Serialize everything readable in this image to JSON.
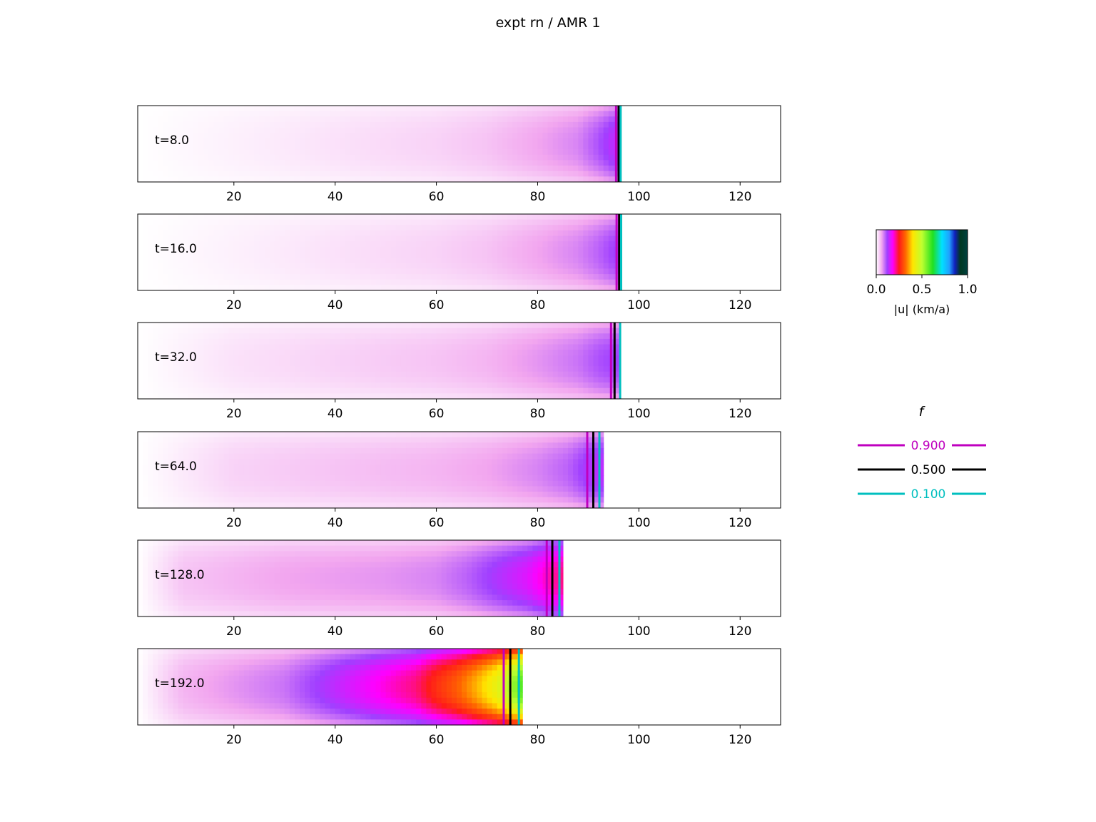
{
  "title": "expt rn / AMR 1",
  "chart_data": {
    "type": "heatmap",
    "xlim": [
      1,
      128
    ],
    "x_ticks": [
      20,
      40,
      60,
      80,
      100,
      120
    ],
    "panels": [
      {
        "label": "t=8.0",
        "front": 96
      },
      {
        "label": "t=16.0",
        "front": 96
      },
      {
        "label": "t=32.0",
        "front": 96
      },
      {
        "label": "t=64.0",
        "front": 93
      },
      {
        "label": "t=128.0",
        "front": 85
      },
      {
        "label": "t=192.0",
        "front": 77
      }
    ],
    "speed_profiles": [
      {
        "t": "t=8.0",
        "x": [
          1,
          20,
          40,
          60,
          70,
          80,
          88,
          92,
          95,
          96
        ],
        "u": [
          0.0,
          0.01,
          0.02,
          0.03,
          0.04,
          0.06,
          0.08,
          0.11,
          0.14,
          0.14
        ]
      },
      {
        "t": "t=16.0",
        "x": [
          1,
          20,
          40,
          60,
          70,
          80,
          88,
          92,
          95,
          96
        ],
        "u": [
          0.0,
          0.01,
          0.02,
          0.03,
          0.04,
          0.06,
          0.08,
          0.1,
          0.12,
          0.12
        ]
      },
      {
        "t": "t=32.0",
        "x": [
          1,
          20,
          40,
          60,
          70,
          80,
          88,
          92,
          95,
          96
        ],
        "u": [
          0.0,
          0.02,
          0.03,
          0.04,
          0.05,
          0.07,
          0.09,
          0.11,
          0.12,
          0.12
        ]
      },
      {
        "t": "t=64.0",
        "x": [
          1,
          20,
          40,
          60,
          70,
          80,
          86,
          90,
          93
        ],
        "u": [
          0.0,
          0.03,
          0.04,
          0.05,
          0.06,
          0.08,
          0.1,
          0.13,
          0.14
        ]
      },
      {
        "t": "t=128.0",
        "x": [
          1,
          10,
          30,
          50,
          60,
          66,
          72,
          78,
          82,
          85
        ],
        "u": [
          0.0,
          0.04,
          0.06,
          0.07,
          0.08,
          0.1,
          0.13,
          0.16,
          0.2,
          0.22
        ]
      },
      {
        "t": "t=192.0",
        "x": [
          1,
          10,
          30,
          40,
          50,
          56,
          60,
          64,
          68,
          72,
          75,
          77
        ],
        "u": [
          0.0,
          0.05,
          0.09,
          0.14,
          0.19,
          0.22,
          0.27,
          0.31,
          0.37,
          0.44,
          0.52,
          0.6
        ]
      }
    ],
    "f_contours": [
      {
        "t": "t=8.0",
        "f_0.900": 95.5,
        "f_0.500": 96.0,
        "f_0.100": 96.4
      },
      {
        "t": "t=16.0",
        "f_0.900": 95.6,
        "f_0.500": 96.1,
        "f_0.100": 96.5
      },
      {
        "t": "t=32.0",
        "f_0.900": 94.5,
        "f_0.500": 95.2,
        "f_0.100": 96.3
      },
      {
        "t": "t=64.0",
        "f_0.900": 89.8,
        "f_0.500": 91.0,
        "f_0.100": 92.2
      },
      {
        "t": "t=128.0",
        "f_0.900": 81.8,
        "f_0.500": 82.9,
        "f_0.100": 84.3
      },
      {
        "t": "t=192.0",
        "f_0.900": 73.3,
        "f_0.500": 74.6,
        "f_0.100": 76.3
      }
    ],
    "colorbar": {
      "label": "|u| (km/a)",
      "ticks": [
        "0.0",
        "0.5",
        "1.0"
      ],
      "range": [
        0.0,
        1.0
      ],
      "stops": [
        {
          "v": 0.0,
          "color": "#ffffff"
        },
        {
          "v": 0.06,
          "color": "#f2a6ef"
        },
        {
          "v": 0.12,
          "color": "#a040ff"
        },
        {
          "v": 0.18,
          "color": "#ff00ff"
        },
        {
          "v": 0.25,
          "color": "#ff1a1a"
        },
        {
          "v": 0.32,
          "color": "#ff6600"
        },
        {
          "v": 0.4,
          "color": "#ffe600"
        },
        {
          "v": 0.5,
          "color": "#c0ff30"
        },
        {
          "v": 0.62,
          "color": "#20e020"
        },
        {
          "v": 0.72,
          "color": "#00e0ff"
        },
        {
          "v": 0.8,
          "color": "#20a0ff"
        },
        {
          "v": 0.86,
          "color": "#1020c0"
        },
        {
          "v": 0.92,
          "color": "#003820"
        },
        {
          "v": 1.0,
          "color": "#004040"
        }
      ]
    },
    "legend": {
      "title": "f",
      "entries": [
        {
          "label": "0.900",
          "color": "#bf00bf"
        },
        {
          "label": "0.500",
          "color": "#000000"
        },
        {
          "label": "0.100",
          "color": "#00bfbf"
        }
      ]
    }
  }
}
